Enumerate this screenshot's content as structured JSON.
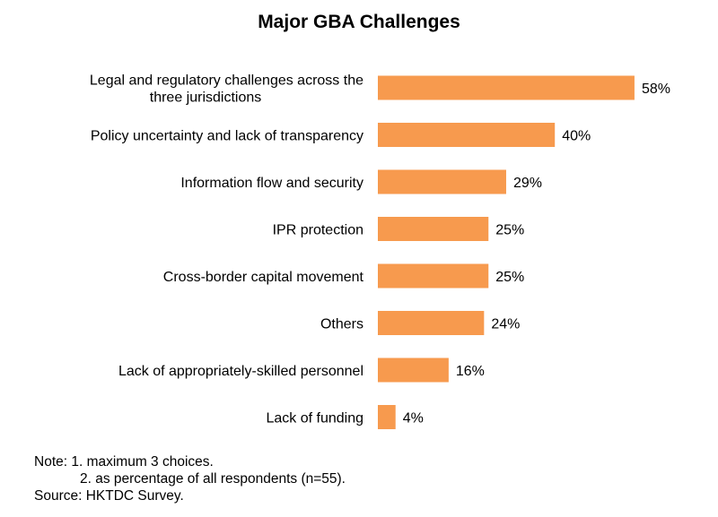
{
  "chart_data": {
    "type": "bar",
    "orientation": "horizontal",
    "title": "Major GBA Challenges",
    "categories": [
      [
        "Legal and regulatory challenges across the",
        "three jurisdictions"
      ],
      [
        "Policy uncertainty and lack of transparency"
      ],
      [
        "Information flow and security"
      ],
      [
        "IPR protection"
      ],
      [
        "Cross-border capital movement"
      ],
      [
        "Others"
      ],
      [
        "Lack of appropriately-skilled personnel"
      ],
      [
        "Lack of funding"
      ]
    ],
    "values": [
      58,
      40,
      29,
      25,
      25,
      24,
      16,
      4
    ],
    "value_labels": [
      "58%",
      "40%",
      "29%",
      "25%",
      "25%",
      "24%",
      "16%",
      "4%"
    ],
    "xlim": [
      0,
      60
    ],
    "grid": false,
    "legend": "none",
    "bar_color": "#F79A4E"
  },
  "notes": {
    "line1": "Note: 1. maximum 3 choices.",
    "line2": "2. as percentage of all respondents (n=55).",
    "line3": "Source: HKTDC Survey."
  }
}
